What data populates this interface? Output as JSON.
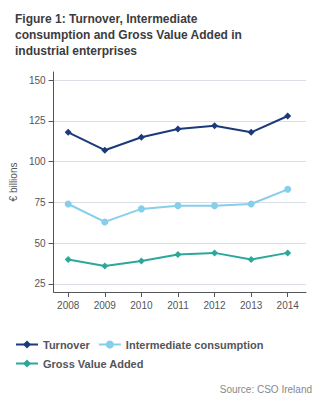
{
  "chart_data": {
    "type": "line",
    "title": "Figure 1: Turnover, Intermediate\nconsumption and Gross Value Added in\nindustrial enterprises",
    "x": [
      2008,
      2009,
      2010,
      2011,
      2012,
      2013,
      2014
    ],
    "xlim": [
      2007.6,
      2014.5
    ],
    "xticks": [
      2008,
      2009,
      2010,
      2011,
      2012,
      2013,
      2014
    ],
    "ylabel": "€ billions",
    "ylim": [
      20,
      155
    ],
    "yticks": [
      25,
      50,
      75,
      100,
      125,
      150
    ],
    "grid": true,
    "legend": "bottom",
    "annotations": [
      "Source: CSO Ireland"
    ],
    "series": [
      {
        "name": "Turnover",
        "color": "#1a3a7a",
        "marker": "diamond",
        "values": [
          118,
          107,
          115,
          120,
          122,
          118,
          128
        ]
      },
      {
        "name": "Intermediate consumption",
        "color": "#87ceeb",
        "marker": "circle",
        "values": [
          74,
          63,
          71,
          73,
          73,
          74,
          83
        ]
      },
      {
        "name": "Gross Value Added",
        "color": "#2ca89a",
        "marker": "diamond",
        "values": [
          40,
          36,
          39,
          43,
          44,
          40,
          44
        ]
      }
    ]
  }
}
